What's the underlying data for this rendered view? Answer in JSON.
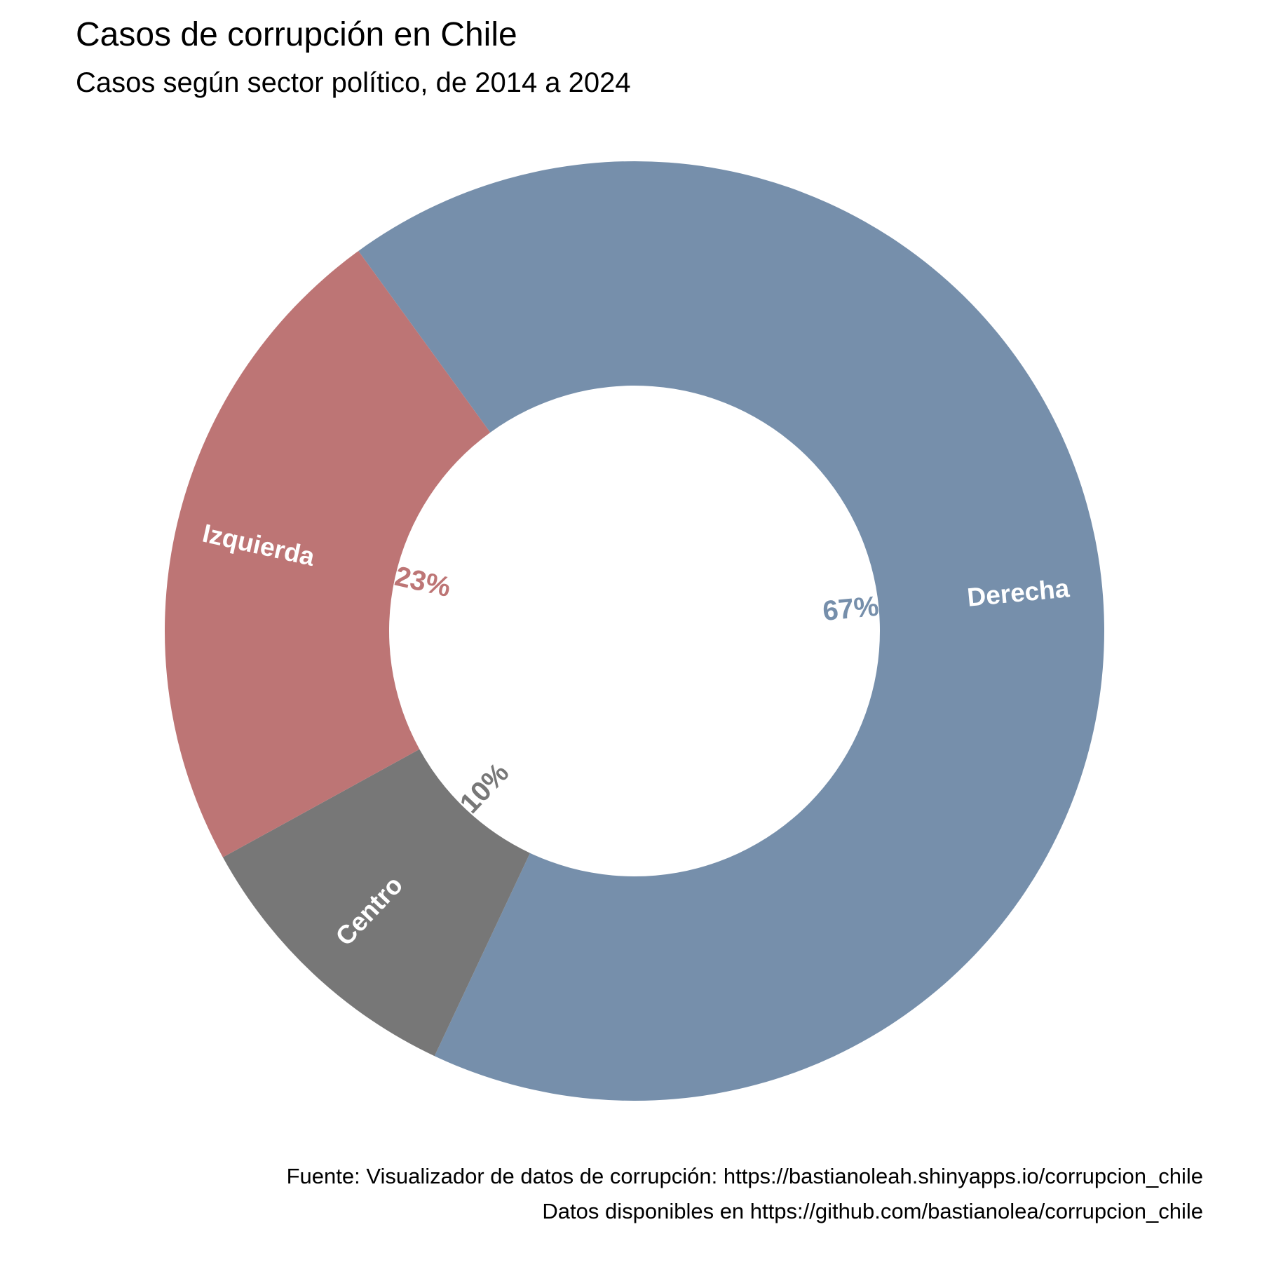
{
  "chart_data": {
    "type": "pie",
    "style": "donut",
    "title": "Casos de corrupción en Chile",
    "subtitle": "Casos según sector político, de 2014 a 2024",
    "slices": [
      {
        "label": "Derecha",
        "percent_label": "67%",
        "value": 67,
        "color": "#768fab"
      },
      {
        "label": "Centro",
        "percent_label": "10%",
        "value": 10,
        "color": "#777777"
      },
      {
        "label": "Izquierda",
        "percent_label": "23%",
        "value": 23,
        "color": "#bd7575"
      }
    ],
    "legend": "none",
    "grid": false
  },
  "caption": {
    "line1": "Fuente: Visualizador de datos de corrupción: https://bastianoleah.shinyapps.io/corrupcion_chile",
    "line2": "Datos disponibles en https://github.com/bastianolea/corrupcion_chile"
  }
}
